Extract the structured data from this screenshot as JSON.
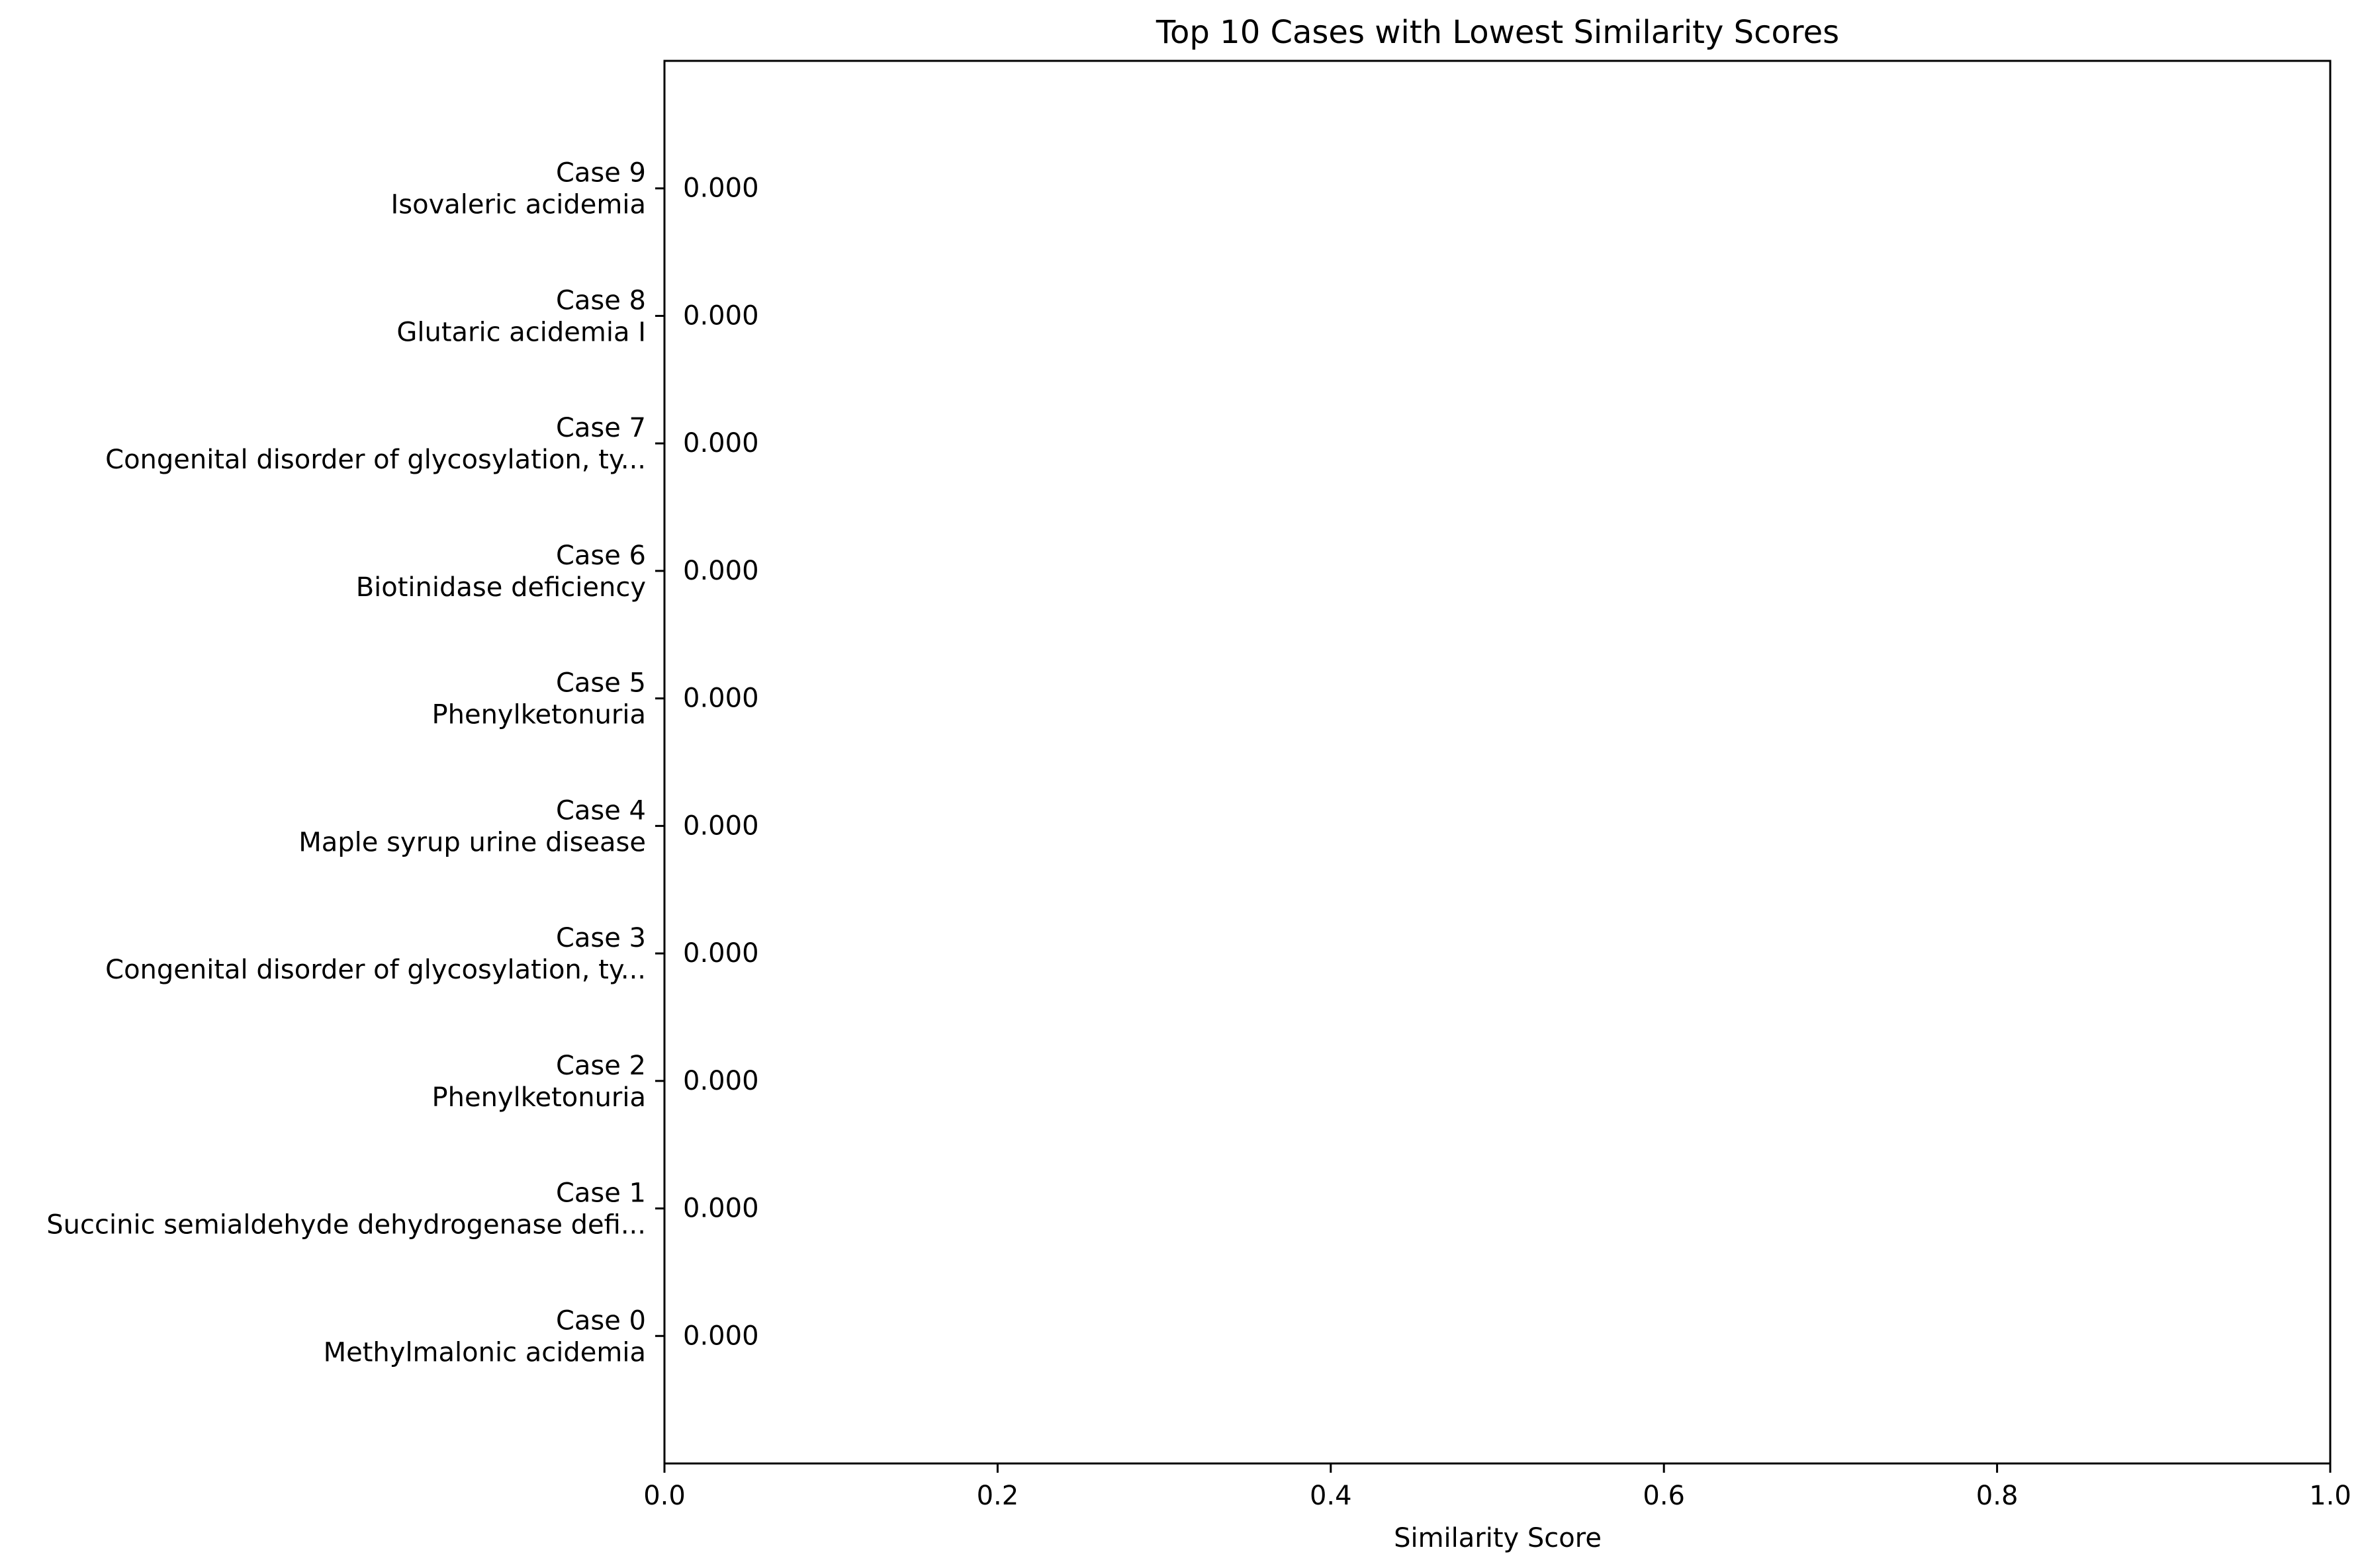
{
  "chart_data": {
    "type": "bar",
    "orientation": "horizontal",
    "title": "Top 10 Cases with Lowest Similarity Scores",
    "xlabel": "Similarity Score",
    "ylabel": "",
    "xlim": [
      0.0,
      1.0
    ],
    "x_ticks": [
      "0.0",
      "0.2",
      "0.4",
      "0.6",
      "0.8",
      "1.0"
    ],
    "grid": false,
    "categories": [
      {
        "case": "Case 0",
        "condition": "Methylmalonic acidemia",
        "value": 0.0,
        "value_label": "0.000"
      },
      {
        "case": "Case 1",
        "condition": "Succinic semialdehyde dehydrogenase defi...",
        "value": 0.0,
        "value_label": "0.000"
      },
      {
        "case": "Case 2",
        "condition": "Phenylketonuria",
        "value": 0.0,
        "value_label": "0.000"
      },
      {
        "case": "Case 3",
        "condition": "Congenital disorder of glycosylation, ty...",
        "value": 0.0,
        "value_label": "0.000"
      },
      {
        "case": "Case 4",
        "condition": "Maple syrup urine disease",
        "value": 0.0,
        "value_label": "0.000"
      },
      {
        "case": "Case 5",
        "condition": "Phenylketonuria",
        "value": 0.0,
        "value_label": "0.000"
      },
      {
        "case": "Case 6",
        "condition": "Biotinidase deficiency",
        "value": 0.0,
        "value_label": "0.000"
      },
      {
        "case": "Case 7",
        "condition": "Congenital disorder of glycosylation, ty...",
        "value": 0.0,
        "value_label": "0.000"
      },
      {
        "case": "Case 8",
        "condition": "Glutaric acidemia I",
        "value": 0.0,
        "value_label": "0.000"
      },
      {
        "case": "Case 9",
        "condition": "Isovaleric acidemia",
        "value": 0.0,
        "value_label": "0.000"
      }
    ]
  }
}
